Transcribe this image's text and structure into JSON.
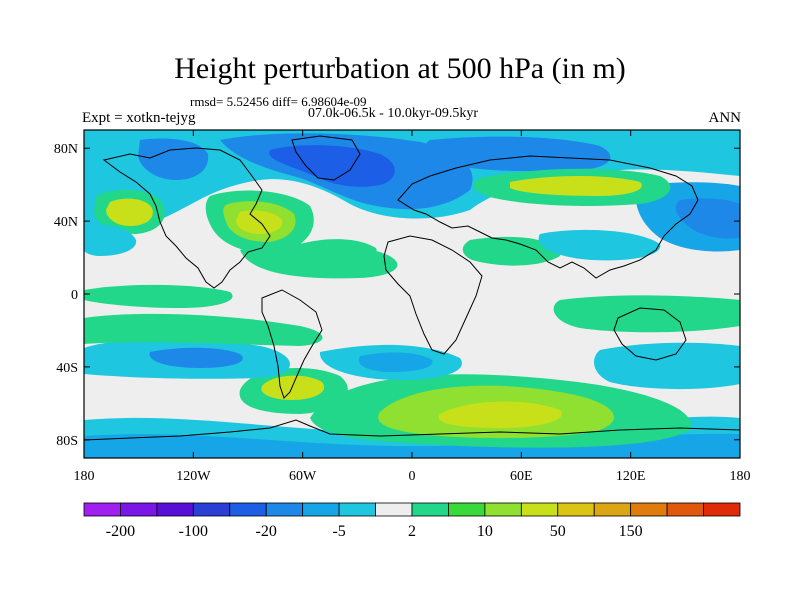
{
  "title": "Height perturbation at 500 hPa (in m)",
  "stats": "rmsd= 5.52456 diff= 6.98604e-09",
  "experiment": "Expt = xotkn-tejyg",
  "period": "07.0k-06.5k - 10.0kyr-09.5kyr",
  "season": "ANN",
  "map": {
    "lon_range": [
      -180,
      180
    ],
    "lat_range": [
      -90,
      90
    ],
    "background_color": "#eeeeee",
    "lat_ticks": [
      {
        "value": 80,
        "label": "80N"
      },
      {
        "value": 40,
        "label": "40N"
      },
      {
        "value": 0,
        "label": "0"
      },
      {
        "value": -40,
        "label": "40S"
      },
      {
        "value": -80,
        "label": "80S"
      }
    ],
    "lon_ticks": [
      {
        "value": -180,
        "label": "180"
      },
      {
        "value": -120,
        "label": "120W"
      },
      {
        "value": -60,
        "label": "60W"
      },
      {
        "value": 0,
        "label": "0"
      },
      {
        "value": 60,
        "label": "60E"
      },
      {
        "value": 120,
        "label": "120E"
      },
      {
        "value": 180,
        "label": "180"
      }
    ]
  },
  "colorbar": {
    "colors": [
      "#a020f0",
      "#7a16e8",
      "#5a0fd8",
      "#2b3ed6",
      "#1d5ee6",
      "#1e88e8",
      "#16a5e6",
      "#1ec6e0",
      "#eeeeee",
      "#22d68a",
      "#3ad93a",
      "#8fe030",
      "#c8e01a",
      "#dcc414",
      "#dca514",
      "#e07c0e",
      "#e0580c",
      "#e02a08"
    ],
    "labels": [
      "-200",
      "-100",
      "-20",
      "-5",
      "2",
      "10",
      "50",
      "150"
    ]
  },
  "chart_data": {
    "type": "contour_map",
    "variable": "Height perturbation at 500 hPa",
    "units": "m",
    "projection": "cylindrical equidistant",
    "levels_labeled": [
      -200,
      -100,
      -20,
      -5,
      2,
      10,
      50,
      150
    ],
    "features": [
      {
        "region": "Greenland / North Atlantic",
        "sign": "negative",
        "approx_value": -10
      },
      {
        "region": "Northern Siberia",
        "sign": "negative",
        "approx_value": -10
      },
      {
        "region": "Northeast Pacific / Alaska",
        "sign": "negative",
        "approx_value": -5
      },
      {
        "region": "North-central Pacific",
        "sign": "positive",
        "approx_value": 20
      },
      {
        "region": "North America",
        "sign": "positive",
        "approx_value": 20
      },
      {
        "region": "Central Asia",
        "sign": "positive",
        "approx_value": 20
      },
      {
        "region": "Southern Indian Ocean",
        "sign": "positive",
        "approx_value": 30
      },
      {
        "region": "South Atlantic near South America",
        "sign": "positive",
        "approx_value": 30
      },
      {
        "region": "Southern Ocean (Pacific sector)",
        "sign": "negative",
        "approx_value": -10
      }
    ]
  }
}
